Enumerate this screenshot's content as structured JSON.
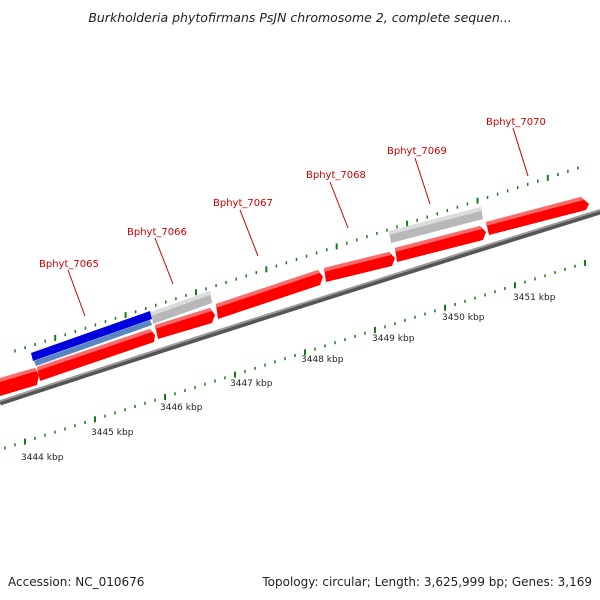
{
  "title": "Burkholderia phytofirmans PsJN chromosome 2, complete sequen...",
  "footer": {
    "accession": "Accession: NC_010676",
    "summary": "Topology: circular; Length: 3,625,999 bp; Genes: 3,169"
  },
  "colors": {
    "forward_gene": "#ff0000",
    "reverse_gene": "#ff0000",
    "pseudo_gene": "#c0c0c0",
    "highlight_gene": "#0000dd",
    "highlight_shadow": "#5a86c0",
    "backbone": "#888888",
    "tick": "#1a7a1a",
    "gene_label": "#cc0000"
  },
  "kbp_labels": [
    "3444 kbp",
    "3445 kbp",
    "3446 kbp",
    "3447 kbp",
    "3448 kbp",
    "3449 kbp",
    "3450 kbp",
    "3451 kbp"
  ],
  "gene_labels": [
    "Bphyt_7065",
    "Bphyt_7066",
    "Bphyt_7067",
    "Bphyt_7068",
    "Bphyt_7069",
    "Bphyt_7070"
  ]
}
